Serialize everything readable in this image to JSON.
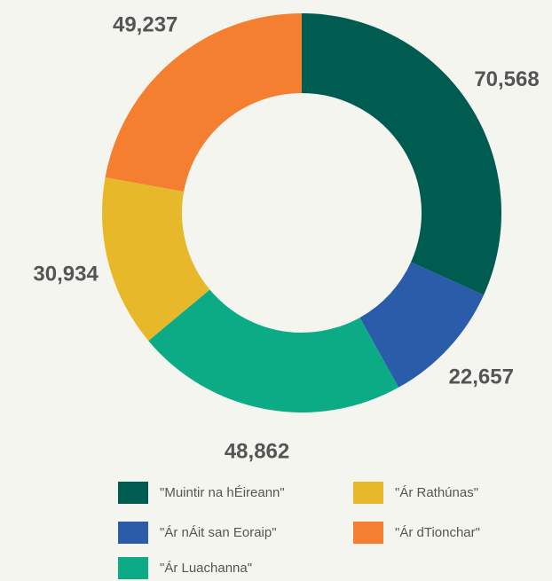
{
  "chart_data": {
    "type": "donut",
    "categories": [
      "\"Muintir na hÉireann\"",
      "\"Ár nÁit san Eoraip\"",
      "\"Ár Luachanna\"",
      "\"Ár Rathúnas\"",
      "\"Ár dTionchar\""
    ],
    "values": [
      70568,
      22657,
      48862,
      30934,
      49237
    ],
    "value_labels": [
      "70,568",
      "22,657",
      "48,862",
      "30,934",
      "49,237"
    ],
    "colors": [
      "#005b50",
      "#2a5caa",
      "#0bab85",
      "#e7b82a",
      "#f47f30"
    ]
  }
}
